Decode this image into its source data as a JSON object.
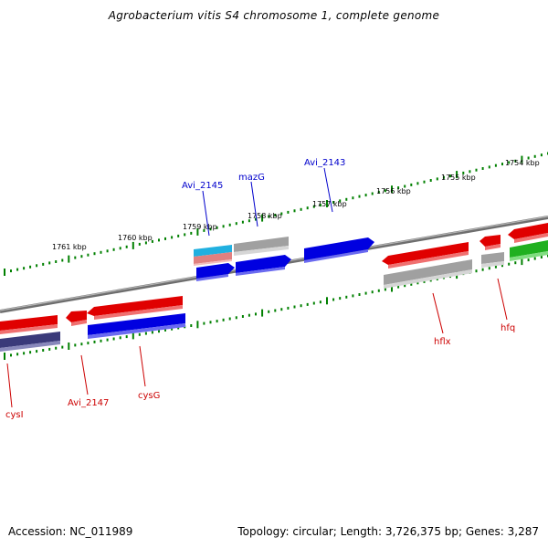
{
  "title": "Agrobacterium vitis S4 chromosome 1, complete genome",
  "accession": "Accession: NC_011989",
  "stats": "Topology: circular; Length: 3,726,375 bp; Genes: 3,287",
  "colors": {
    "backbone": "#808080",
    "ticks": "#008000",
    "positive_label": "#0000cc",
    "negative_label": "#cc0000",
    "red_gene": "#e00000",
    "blue_gene": "#0000e0",
    "gray_gene": "#a0a0a0",
    "green_gene": "#20b020",
    "navy_gene": "#3a3a7a",
    "cyan_gene": "#20b0e0",
    "pink_gene": "#e08080"
  },
  "scale_labels": [
    "1761 kbp",
    "1760 kbp",
    "1759 kbp",
    "1758 kbp",
    "1757 kbp",
    "1756 kbp",
    "1755 kbp",
    "1754 kbp"
  ],
  "gene_labels_positive": [
    "Avi_2145",
    "mazG",
    "Avi_2143"
  ],
  "gene_labels_negative": [
    "cysI",
    "Avi_2147",
    "cysG",
    "hflx",
    "hfq"
  ]
}
